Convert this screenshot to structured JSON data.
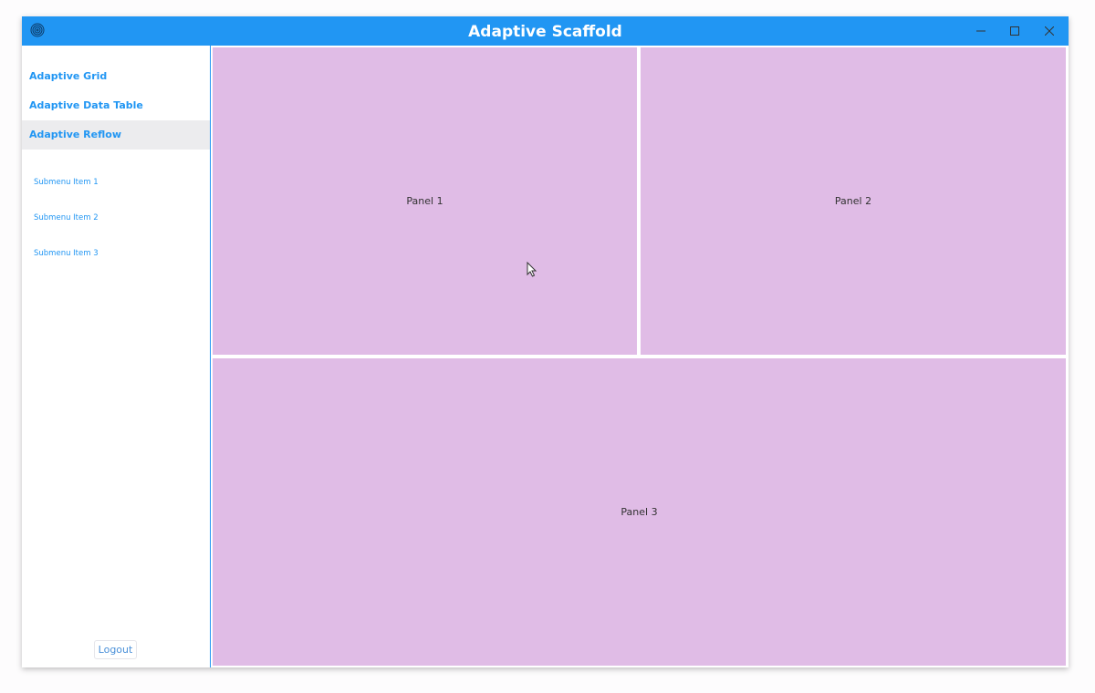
{
  "window": {
    "title": "Adaptive Scaffold",
    "icon": "fingerprint-icon",
    "accent": "#2196F3",
    "panel_color": "#E0BCE6"
  },
  "controls": {
    "minimize": "minimize-icon",
    "maximize": "maximize-icon",
    "close": "close-icon"
  },
  "sidebar": {
    "items": [
      {
        "label": "Adaptive Grid",
        "active": false
      },
      {
        "label": "Adaptive Data Table",
        "active": false
      },
      {
        "label": "Adaptive Reflow",
        "active": true
      }
    ],
    "subitems": [
      {
        "label": "Submenu Item 1"
      },
      {
        "label": "Submenu Item 2"
      },
      {
        "label": "Submenu Item 3"
      }
    ],
    "logout_label": "Logout"
  },
  "panels": [
    {
      "label": "Panel 1"
    },
    {
      "label": "Panel 2"
    },
    {
      "label": "Panel 3"
    }
  ]
}
